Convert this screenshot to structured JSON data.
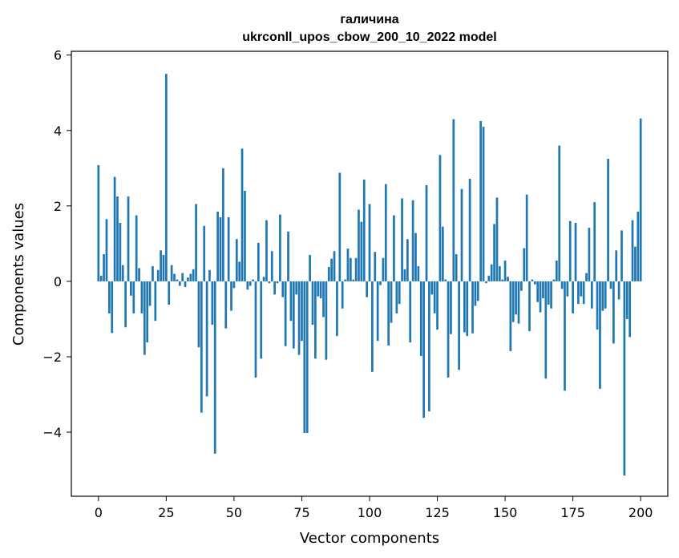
{
  "chart_data": {
    "type": "bar",
    "title": "галичина",
    "subtitle": "ukrconll_upos_cbow_200_10_2022 model",
    "xlabel": "Vector components",
    "ylabel": "Components values",
    "xlim": [
      -10,
      210
    ],
    "ylim": [
      -5.7,
      6.1
    ],
    "x_ticks": [
      0,
      25,
      50,
      75,
      100,
      125,
      150,
      175,
      200
    ],
    "y_ticks": [
      -4,
      -2,
      0,
      2,
      4,
      6
    ],
    "x_tick_labels": [
      "0",
      "25",
      "50",
      "75",
      "100",
      "125",
      "150",
      "175",
      "200"
    ],
    "y_tick_labels": [
      "−4",
      "−2",
      "0",
      "2",
      "4",
      "6"
    ],
    "bar_color": "#1f77b4",
    "grid": false,
    "values": [
      3.08,
      0.15,
      0.72,
      1.65,
      -0.85,
      -1.37,
      2.77,
      2.25,
      1.55,
      0.43,
      -1.22,
      2.25,
      -0.38,
      -0.85,
      1.75,
      0.35,
      -0.85,
      -1.95,
      -1.62,
      -0.65,
      0.4,
      -1.05,
      0.3,
      0.82,
      0.7,
      5.5,
      -0.62,
      0.43,
      0.2,
      0.05,
      -0.12,
      0.22,
      -0.15,
      0.1,
      0.2,
      0.32,
      2.05,
      -1.75,
      -3.48,
      1.47,
      -3.05,
      0.3,
      -1.15,
      -4.57,
      1.85,
      1.7,
      3.0,
      -1.25,
      1.7,
      -0.78,
      -0.18,
      1.12,
      0.52,
      3.52,
      2.4,
      -0.22,
      -0.12,
      0.05,
      -2.55,
      1.02,
      -2.05,
      0.12,
      1.62,
      -0.05,
      0.8,
      -0.35,
      -0.05,
      1.77,
      -0.42,
      -1.72,
      1.32,
      -1.05,
      -1.78,
      -0.35,
      -1.95,
      -1.58,
      -4.02,
      -4.02,
      0.7,
      -1.15,
      -2.05,
      -0.4,
      -0.45,
      -0.95,
      -2.08,
      0.38,
      0.6,
      0.8,
      -1.45,
      2.88,
      -0.72,
      0.05,
      0.87,
      0.62,
      0.05,
      0.62,
      1.9,
      1.58,
      2.7,
      -0.42,
      2.05,
      -2.4,
      0.78,
      -1.58,
      -0.1,
      0.62,
      2.58,
      -1.7,
      -1.1,
      1.75,
      -0.85,
      -0.6,
      2.2,
      0.32,
      1.12,
      -1.62,
      2.15,
      1.28,
      0.4,
      -1.98,
      -3.62,
      2.55,
      -3.45,
      -0.35,
      -0.85,
      -1.28,
      3.35,
      1.45,
      0.05,
      -2.55,
      -1.4,
      4.3,
      0.72,
      -2.35,
      2.45,
      -1.35,
      -1.45,
      2.72,
      -1.38,
      -0.65,
      -0.52,
      4.25,
      4.1,
      -0.05,
      0.15,
      0.45,
      1.52,
      2.22,
      0.4,
      0.05,
      0.55,
      0.12,
      -1.85,
      -1.08,
      -0.88,
      -1.12,
      -0.25,
      0.88,
      2.3,
      -1.32,
      0.05,
      -0.08,
      -0.55,
      -0.82,
      -0.45,
      -2.58,
      -0.62,
      -0.72,
      0.05,
      0.55,
      3.6,
      -0.2,
      -2.9,
      -0.4,
      1.6,
      -0.85,
      1.55,
      -0.6,
      -0.4,
      -0.6,
      0.22,
      1.42,
      -0.72,
      2.1,
      -1.28,
      -2.85,
      -0.78,
      -0.72,
      3.25,
      -0.2,
      -1.65,
      0.82,
      -0.48,
      1.35,
      -5.15,
      -1.0,
      -1.48,
      1.62,
      0.92,
      1.85,
      4.32
    ]
  }
}
